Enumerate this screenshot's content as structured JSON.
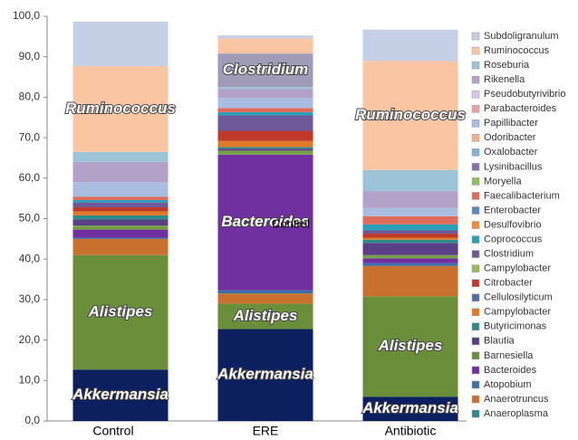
{
  "chart_data": {
    "type": "stacked_bar",
    "categories": [
      "Control",
      "ERE",
      "Antibiotic"
    ],
    "ylim": [
      0,
      100
    ],
    "yticks": [
      {
        "value": 0,
        "label": "0,0"
      },
      {
        "value": 10,
        "label": "10,0"
      },
      {
        "value": 20,
        "label": "20,0"
      },
      {
        "value": 30,
        "label": "30,0"
      },
      {
        "value": 40,
        "label": "40,0"
      },
      {
        "value": 50,
        "label": "50,0"
      },
      {
        "value": 60,
        "label": "60,0"
      },
      {
        "value": 70,
        "label": "70,0"
      },
      {
        "value": 80,
        "label": "80,0"
      },
      {
        "value": 90,
        "label": "90,0"
      },
      {
        "value": 100,
        "label": "100,0"
      }
    ],
    "series": [
      {
        "name": "Akkermansia",
        "color": "#0c1f5e",
        "values": [
          12.7,
          22.7,
          6.0
        ]
      },
      {
        "name": "Alistipes",
        "color": "#6b8e3a",
        "values": [
          28.3,
          6.3,
          24.8
        ]
      },
      {
        "name": "Anaerotruncus",
        "color": "#c8702e",
        "values": [
          4.0,
          2.5,
          7.5
        ]
      },
      {
        "name": "Atopobium",
        "color": "#3d6fa8",
        "values": [
          0.3,
          0.8,
          0.7
        ]
      },
      {
        "name": "Bacteroides",
        "color": "#7030a0",
        "values": [
          2.0,
          33.5,
          1.2
        ]
      },
      {
        "name": "Barnesiella",
        "color": "#77a046",
        "values": [
          1.0,
          1.0,
          0.8
        ]
      },
      {
        "name": "Blautia",
        "color": "#5a3f86",
        "values": [
          1.5,
          0.5,
          3.0
        ]
      },
      {
        "name": "Butyricimonas",
        "color": "#2e8b8b",
        "values": [
          1.0,
          0.4,
          0.8
        ]
      },
      {
        "name": "Campylobacter",
        "color": "#e07a2a",
        "values": [
          1.0,
          1.5,
          0.5
        ]
      },
      {
        "name": "Citrobacter",
        "color": "#c0392b",
        "values": [
          1.0,
          2.5,
          1.0
        ]
      },
      {
        "name": "Lysinibacillus",
        "color": "#6e5a9a",
        "values": [
          1.2,
          3.8,
          0.8
        ]
      },
      {
        "name": "Coprococcus",
        "color": "#2aa0b8",
        "values": [
          0.6,
          0.8,
          1.5
        ]
      },
      {
        "name": "Faecalibacterium",
        "color": "#e06a5a",
        "values": [
          0.8,
          1.0,
          2.0
        ]
      },
      {
        "name": "Papillibacter",
        "color": "#a9bde0",
        "values": [
          3.6,
          2.5,
          2.0
        ]
      },
      {
        "name": "Rikenella",
        "color": "#b3a2c7",
        "values": [
          5.0,
          2.2,
          4.2
        ]
      },
      {
        "name": "Roseburia",
        "color": "#9dc3d6",
        "values": [
          2.5,
          0.5,
          5.2
        ]
      },
      {
        "name": "Clostridium",
        "color": "#a09cb8",
        "values": [
          0,
          8.3,
          0
        ]
      },
      {
        "name": "Ruminococcus",
        "color": "#f9c5a3",
        "values": [
          21.2,
          3.7,
          27.0
        ]
      },
      {
        "name": "Subdoligranulum",
        "color": "#c5cfe6",
        "values": [
          11.0,
          0.8,
          7.7
        ]
      }
    ],
    "segment_labels": [
      [
        0,
        1,
        17
      ],
      [
        0,
        1,
        4,
        16
      ],
      [
        0,
        1,
        17
      ]
    ],
    "annotation": "Control",
    "legend": [
      {
        "name": "Subdoligranulum",
        "color": "#c5cfe6"
      },
      {
        "name": "Ruminococcus",
        "color": "#f9c5a3"
      },
      {
        "name": "Roseburia",
        "color": "#9dc3d6"
      },
      {
        "name": "Rikenella",
        "color": "#b3a2c7"
      },
      {
        "name": "Pseudobutyrivibrio",
        "color": "#d9c3e6"
      },
      {
        "name": "Parabacteroides",
        "color": "#e6a0a0"
      },
      {
        "name": "Papillibacter",
        "color": "#a9bde0"
      },
      {
        "name": "Odoribacter",
        "color": "#f4b183"
      },
      {
        "name": "Oxalobacter",
        "color": "#7fb2d9"
      },
      {
        "name": "Lysinibacillus",
        "color": "#8a6fb0"
      },
      {
        "name": "Moryella",
        "color": "#8fbf5a"
      },
      {
        "name": "Faecalibacterium",
        "color": "#e06a5a"
      },
      {
        "name": "Enterobacter",
        "color": "#5b86c0"
      },
      {
        "name": "Desulfovibrio",
        "color": "#f08a3c"
      },
      {
        "name": "Coprococcus",
        "color": "#2aa0b8"
      },
      {
        "name": "Clostridium",
        "color": "#6e5a9a"
      },
      {
        "name": "Campylobacter",
        "color": "#9bbb59"
      },
      {
        "name": "Citrobacter",
        "color": "#c0392b"
      },
      {
        "name": "Cellulosilyticum",
        "color": "#4f6fa8"
      },
      {
        "name": "Campylobacter",
        "color": "#e07a2a"
      },
      {
        "name": "Butyricimonas",
        "color": "#2e8b8b"
      },
      {
        "name": "Blautia",
        "color": "#5a3f86"
      },
      {
        "name": "Barnesiella",
        "color": "#6b8e3a"
      },
      {
        "name": "Bacteroides",
        "color": "#7030a0"
      },
      {
        "name": "Atopobium",
        "color": "#3d6fa8"
      },
      {
        "name": "Anaerotruncus",
        "color": "#c8702e"
      },
      {
        "name": "Anaeroplasma",
        "color": "#2b8a8a"
      }
    ]
  }
}
